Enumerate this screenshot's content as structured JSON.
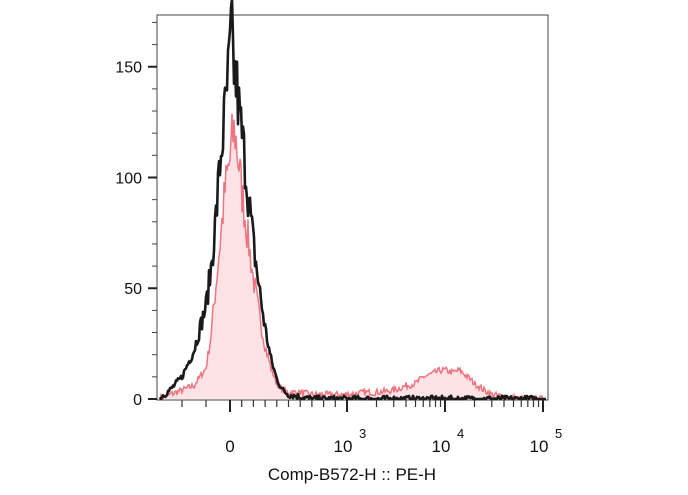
{
  "chart_data": {
    "type": "area",
    "title": "",
    "xlabel": "Comp-B572-H :: PE-H",
    "ylabel": "",
    "x_scale": "biexponential",
    "xlim": [
      -300,
      100000
    ],
    "ylim": [
      0,
      172
    ],
    "y_ticks": [
      0,
      50,
      100,
      150
    ],
    "x_ticks": [
      {
        "value": 0,
        "base": "0",
        "exp": ""
      },
      {
        "value": 1000,
        "base": "10",
        "exp": "3"
      },
      {
        "value": 10000,
        "base": "10",
        "exp": "4"
      },
      {
        "value": 100000,
        "base": "10",
        "exp": "5"
      }
    ],
    "grid": false,
    "legend": "none",
    "series": [
      {
        "style": "filled",
        "line_color": "#ef7480",
        "fill_color": "#fde3e5",
        "x": [
          -300,
          -250,
          -200,
          -150,
          -100,
          -80,
          -60,
          -40,
          -20,
          0,
          20,
          40,
          60,
          80,
          100,
          130,
          160,
          200,
          250,
          300,
          350,
          400,
          450,
          500,
          600,
          700,
          800,
          1000,
          1500,
          2000,
          3000,
          4000,
          5000,
          6000,
          7000,
          8000,
          9000,
          10000,
          12000,
          14000,
          16000,
          18000,
          20000,
          25000,
          30000,
          40000,
          60000,
          100000
        ],
        "y": [
          0,
          2,
          4,
          6,
          14,
          28,
          50,
          72,
          95,
          108,
          118,
          121,
          113,
          104,
          94,
          82,
          70,
          54,
          38,
          24,
          14,
          7,
          4,
          3,
          3,
          2,
          2,
          2,
          3,
          3,
          4,
          6,
          7,
          10,
          11,
          12,
          13,
          13,
          12,
          13,
          11,
          9,
          7,
          4,
          2,
          1,
          0,
          0
        ]
      },
      {
        "style": "line",
        "line_color": "#1a1a1a",
        "x": [
          -300,
          -250,
          -200,
          -150,
          -100,
          -80,
          -60,
          -40,
          -20,
          0,
          10,
          20,
          40,
          60,
          80,
          100,
          130,
          160,
          200,
          250,
          300,
          350,
          400,
          450,
          500,
          600,
          700,
          800,
          1000,
          1500,
          2000,
          5000,
          10000,
          100000
        ],
        "y": [
          0,
          4,
          10,
          22,
          42,
          58,
          80,
          108,
          130,
          155,
          168,
          160,
          146,
          140,
          128,
          120,
          106,
          90,
          70,
          50,
          32,
          18,
          9,
          4,
          2,
          1,
          0,
          0,
          0,
          0,
          0,
          0,
          0,
          0
        ]
      }
    ]
  }
}
